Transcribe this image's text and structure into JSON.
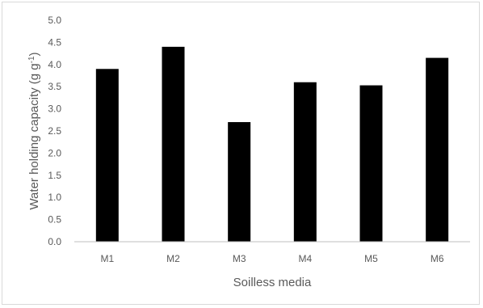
{
  "chart_data": {
    "type": "bar",
    "categories": [
      "M1",
      "M2",
      "M3",
      "M4",
      "M5",
      "M6"
    ],
    "values": [
      3.9,
      4.4,
      2.7,
      3.6,
      3.53,
      4.15
    ],
    "title": "",
    "xlabel": "Soilless media",
    "ylabel": "Water holding capacity (g g",
    "ylabel_superscript": "-1",
    "ylabel_suffix": ")",
    "ylim": [
      0,
      5.0
    ],
    "yticks": [
      "0.0",
      "0.5",
      "1.0",
      "1.5",
      "2.0",
      "2.5",
      "3.0",
      "3.5",
      "4.0",
      "4.5",
      "5.0"
    ],
    "grid": false,
    "legend": "none",
    "bar_color": "#000000",
    "axis_color": "#bfbfbf"
  }
}
